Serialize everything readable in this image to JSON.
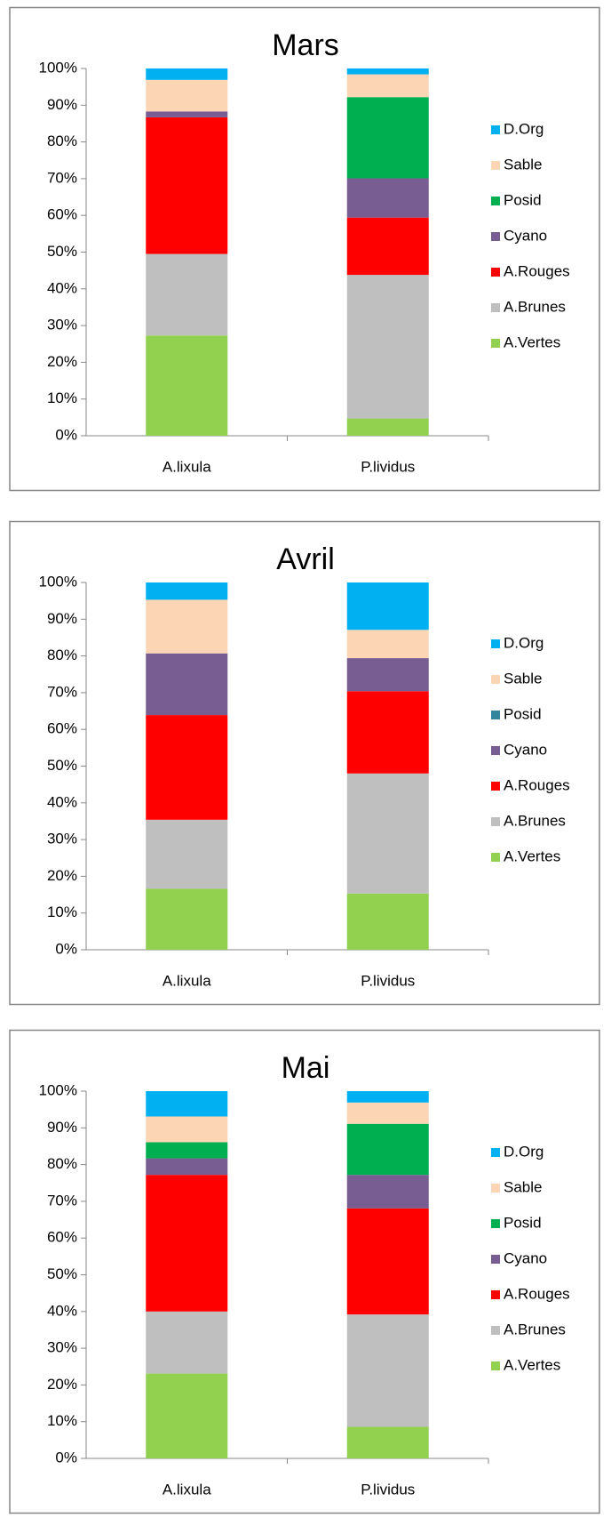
{
  "chart_data": [
    {
      "type": "bar",
      "title": "Mars",
      "categories": [
        "A.lixula",
        "P.lividus"
      ],
      "ylim": [
        0,
        100
      ],
      "yticks": [
        {
          "value": 0,
          "label": "0%"
        },
        {
          "value": 10,
          "label": "10%"
        },
        {
          "value": 20,
          "label": "20%"
        },
        {
          "value": 30,
          "label": "30%"
        },
        {
          "value": 40,
          "label": "40%"
        },
        {
          "value": 50,
          "label": "50%"
        },
        {
          "value": 60,
          "label": "60%"
        },
        {
          "value": 70,
          "label": "70%"
        },
        {
          "value": 80,
          "label": "80%"
        },
        {
          "value": 90,
          "label": "90%"
        },
        {
          "value": 100,
          "label": "100%"
        }
      ],
      "series": [
        {
          "name": "A.Vertes",
          "color": "#92d050",
          "values": [
            27.3,
            4.7
          ]
        },
        {
          "name": "A.Brunes",
          "color": "#bfbfbf",
          "values": [
            22.2,
            39.1
          ]
        },
        {
          "name": "A.Rouges",
          "color": "#ff0000",
          "values": [
            37.2,
            15.6
          ]
        },
        {
          "name": "Cyano",
          "color": "#775d91",
          "values": [
            1.6,
            10.7
          ]
        },
        {
          "name": "Posid",
          "color": "#00b050",
          "values": [
            0,
            22.1
          ]
        },
        {
          "name": "Sable",
          "color": "#fcd5b5",
          "values": [
            8.6,
            6.2
          ]
        },
        {
          "name": "D.Org",
          "color": "#00b0f0",
          "values": [
            3.1,
            1.6
          ]
        }
      ]
    },
    {
      "type": "bar",
      "title": "Avril",
      "categories": [
        "A.lixula",
        "P.lividus"
      ],
      "ylim": [
        0,
        100
      ],
      "yticks": [
        {
          "value": 0,
          "label": "0%"
        },
        {
          "value": 10,
          "label": "10%"
        },
        {
          "value": 20,
          "label": "20%"
        },
        {
          "value": 30,
          "label": "30%"
        },
        {
          "value": 40,
          "label": "40%"
        },
        {
          "value": 50,
          "label": "50%"
        },
        {
          "value": 60,
          "label": "60%"
        },
        {
          "value": 70,
          "label": "70%"
        },
        {
          "value": 80,
          "label": "80%"
        },
        {
          "value": 90,
          "label": "90%"
        },
        {
          "value": 100,
          "label": "100%"
        }
      ],
      "series": [
        {
          "name": "A.Vertes",
          "color": "#92d050",
          "values": [
            16.6,
            15.3
          ]
        },
        {
          "name": "A.Brunes",
          "color": "#bfbfbf",
          "values": [
            18.8,
            32.7
          ]
        },
        {
          "name": "A.Rouges",
          "color": "#ff0000",
          "values": [
            28.5,
            22.4
          ]
        },
        {
          "name": "Cyano",
          "color": "#775d91",
          "values": [
            16.8,
            9.0
          ]
        },
        {
          "name": "Posid",
          "color": "#31859c",
          "values": [
            0,
            0
          ]
        },
        {
          "name": "Sable",
          "color": "#fcd5b5",
          "values": [
            14.6,
            7.7
          ]
        },
        {
          "name": "D.Org",
          "color": "#00b0f0",
          "values": [
            4.7,
            12.9
          ]
        }
      ]
    },
    {
      "type": "bar",
      "title": "Mai",
      "categories": [
        "A.lixula",
        "P.lividus"
      ],
      "ylim": [
        0,
        100
      ],
      "yticks": [
        {
          "value": 0,
          "label": "0%"
        },
        {
          "value": 10,
          "label": "10%"
        },
        {
          "value": 20,
          "label": "20%"
        },
        {
          "value": 30,
          "label": "30%"
        },
        {
          "value": 40,
          "label": "40%"
        },
        {
          "value": 50,
          "label": "50%"
        },
        {
          "value": 60,
          "label": "60%"
        },
        {
          "value": 70,
          "label": "70%"
        },
        {
          "value": 80,
          "label": "80%"
        },
        {
          "value": 90,
          "label": "90%"
        },
        {
          "value": 100,
          "label": "100%"
        }
      ],
      "series": [
        {
          "name": "A.Vertes",
          "color": "#92d050",
          "values": [
            23.1,
            8.6
          ]
        },
        {
          "name": "A.Brunes",
          "color": "#bfbfbf",
          "values": [
            16.9,
            30.6
          ]
        },
        {
          "name": "A.Rouges",
          "color": "#ff0000",
          "values": [
            37.2,
            28.9
          ]
        },
        {
          "name": "Cyano",
          "color": "#775d91",
          "values": [
            4.5,
            9.1
          ]
        },
        {
          "name": "Posid",
          "color": "#00b050",
          "values": [
            4.4,
            13.9
          ]
        },
        {
          "name": "Sable",
          "color": "#fcd5b5",
          "values": [
            7.0,
            5.8
          ]
        },
        {
          "name": "D.Org",
          "color": "#00b0f0",
          "values": [
            6.9,
            3.1
          ]
        }
      ]
    }
  ]
}
